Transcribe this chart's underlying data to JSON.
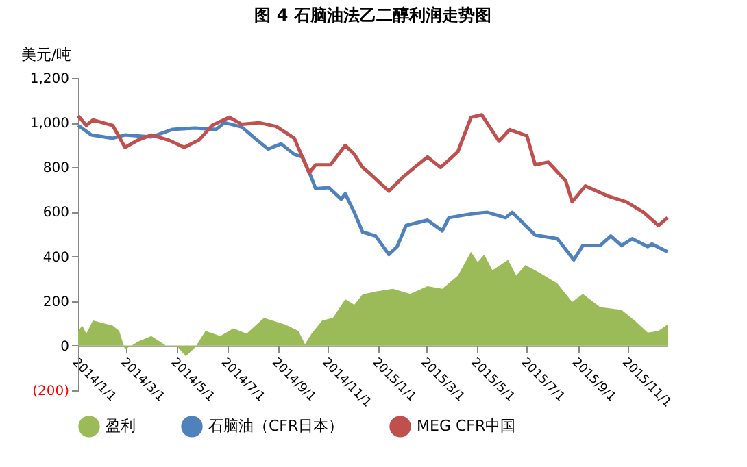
{
  "chart_data": {
    "type": "line",
    "title": "图 4 石脑油法乙二醇利润走势图",
    "ylabel": "美元/吨",
    "xlim": [
      "2014-01-01",
      "2015-12-19"
    ],
    "ylim": [
      -200,
      1200
    ],
    "yticks": [
      {
        "value": -200,
        "label": "(200)"
      },
      {
        "value": 0,
        "label": "0"
      },
      {
        "value": 200,
        "label": "200"
      },
      {
        "value": 400,
        "label": "400"
      },
      {
        "value": 600,
        "label": "600"
      },
      {
        "value": 800,
        "label": "800"
      },
      {
        "value": 1000,
        "label": "1,000"
      },
      {
        "value": 1200,
        "label": "1,200"
      }
    ],
    "xticks": [
      {
        "value": "2014-01-01",
        "label": "2014/1/1"
      },
      {
        "value": "2014-03-01",
        "label": "2014/3/1"
      },
      {
        "value": "2014-05-01",
        "label": "2014/5/1"
      },
      {
        "value": "2014-07-01",
        "label": "2014/7/1"
      },
      {
        "value": "2014-09-01",
        "label": "2014/9/1"
      },
      {
        "value": "2014-11-01",
        "label": "2014/11/1"
      },
      {
        "value": "2015-01-01",
        "label": "2015/1/1"
      },
      {
        "value": "2015-03-01",
        "label": "2015/3/1"
      },
      {
        "value": "2015-05-01",
        "label": "2015/5/1"
      },
      {
        "value": "2015-07-01",
        "label": "2015/7/1"
      },
      {
        "value": "2015-09-01",
        "label": "2015/9/1"
      },
      {
        "value": "2015-11-01",
        "label": "2015/11/1"
      }
    ],
    "legend": "bottom",
    "grid": false,
    "marker": "none",
    "line_style": "solid",
    "series": [
      {
        "name": "盈利",
        "type": "area",
        "color": "#9bbb59",
        "x": [
          "2014-01-01",
          "2014-01-06",
          "2014-01-11",
          "2014-01-19",
          "2014-02-12",
          "2014-02-20",
          "2014-02-27",
          "2014-03-15",
          "2014-03-31",
          "2014-04-18",
          "2014-05-02",
          "2014-05-12",
          "2014-05-23",
          "2014-06-05",
          "2014-06-23",
          "2014-07-09",
          "2014-07-25",
          "2014-08-15",
          "2014-09-10",
          "2014-09-26",
          "2014-10-04",
          "2014-10-12",
          "2014-10-25",
          "2014-11-07",
          "2014-11-22",
          "2014-12-03",
          "2014-12-13",
          "2014-12-29",
          "2015-01-19",
          "2015-02-09",
          "2015-03-02",
          "2015-03-20",
          "2015-04-08",
          "2015-04-24",
          "2015-05-02",
          "2015-05-10",
          "2015-05-20",
          "2015-06-08",
          "2015-06-18",
          "2015-06-29",
          "2015-07-17",
          "2015-08-07",
          "2015-08-25",
          "2015-09-07",
          "2015-09-28",
          "2015-10-24",
          "2015-11-09",
          "2015-11-25",
          "2015-12-08",
          "2015-12-19"
        ],
        "values": [
          66,
          90,
          54,
          113,
          90,
          66,
          -17,
          19,
          43,
          0,
          -5,
          -47,
          -9,
          66,
          43,
          78,
          54,
          125,
          95,
          66,
          7,
          54,
          113,
          125,
          208,
          184,
          230,
          243,
          255,
          232,
          267,
          255,
          314,
          421,
          374,
          409,
          338,
          385,
          314,
          362,
          326,
          279,
          196,
          232,
          173,
          161,
          113,
          59,
          66,
          95
        ]
      },
      {
        "name": "石脑油（CFR日本）",
        "color": "#4f81bd",
        "x": [
          "2014-01-01",
          "2014-01-17",
          "2014-02-12",
          "2014-02-27",
          "2014-03-31",
          "2014-04-26",
          "2014-05-23",
          "2014-06-18",
          "2014-06-28",
          "2014-07-19",
          "2014-08-04",
          "2014-08-20",
          "2014-09-05",
          "2014-09-21",
          "2014-10-01",
          "2014-10-12",
          "2014-10-17",
          "2014-11-02",
          "2014-11-17",
          "2014-11-22",
          "2014-12-03",
          "2014-12-13",
          "2014-12-29",
          "2015-01-14",
          "2015-01-24",
          "2015-02-04",
          "2015-03-02",
          "2015-03-20",
          "2015-03-28",
          "2015-04-24",
          "2015-05-14",
          "2015-06-05",
          "2015-06-13",
          "2015-07-11",
          "2015-08-07",
          "2015-08-27",
          "2015-09-07",
          "2015-09-28",
          "2015-10-11",
          "2015-10-24",
          "2015-11-06",
          "2015-11-25",
          "2015-11-30",
          "2015-12-19"
        ],
        "values": [
          988,
          945,
          930,
          945,
          936,
          970,
          976,
          970,
          1000,
          981,
          930,
          882,
          905,
          858,
          846,
          752,
          704,
          709,
          657,
          681,
          598,
          510,
          492,
          409,
          444,
          539,
          563,
          515,
          574,
          591,
          598,
          574,
          598,
          496,
          480,
          385,
          449,
          449,
          492,
          449,
          480,
          444,
          456,
          421
        ]
      },
      {
        "name": "MEG CFR中国",
        "color": "#c0504d",
        "x": [
          "2014-01-01",
          "2014-01-11",
          "2014-01-19",
          "2014-02-12",
          "2014-02-27",
          "2014-03-15",
          "2014-03-31",
          "2014-04-21",
          "2014-05-10",
          "2014-05-28",
          "2014-06-13",
          "2014-07-04",
          "2014-07-19",
          "2014-08-09",
          "2014-08-30",
          "2014-09-21",
          "2014-10-09",
          "2014-10-17",
          "2014-11-04",
          "2014-11-22",
          "2014-12-03",
          "2014-12-13",
          "2014-12-21",
          "2015-01-14",
          "2015-01-30",
          "2015-02-14",
          "2015-03-02",
          "2015-03-18",
          "2015-04-08",
          "2015-04-24",
          "2015-05-07",
          "2015-05-28",
          "2015-06-10",
          "2015-07-01",
          "2015-07-11",
          "2015-07-27",
          "2015-08-17",
          "2015-08-25",
          "2015-09-10",
          "2015-10-09",
          "2015-10-30",
          "2015-11-20",
          "2015-12-08",
          "2015-12-19"
        ],
        "values": [
          1031,
          988,
          1012,
          988,
          889,
          922,
          945,
          922,
          889,
          922,
          988,
          1024,
          993,
          1000,
          983,
          930,
          775,
          811,
          811,
          898,
          858,
          800,
          775,
          693,
          752,
          799,
          846,
          799,
          870,
          1024,
          1035,
          917,
          969,
          941,
          811,
          823,
          740,
          645,
          716,
          669,
          645,
          598,
          539,
          574
        ]
      }
    ]
  }
}
